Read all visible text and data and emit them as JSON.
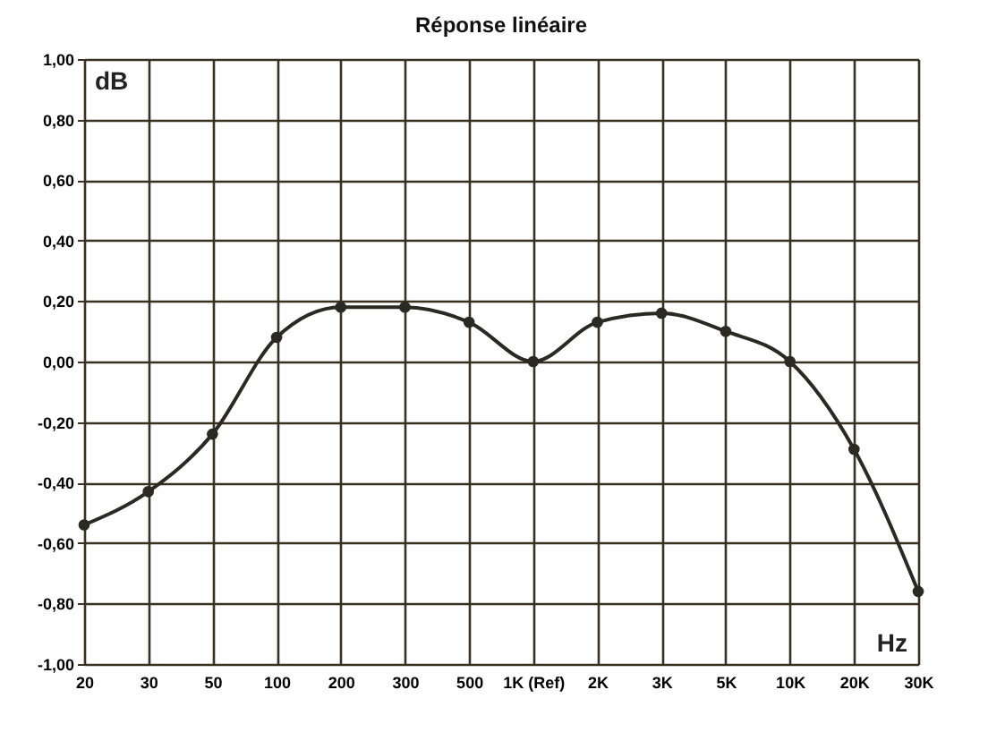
{
  "chart_data": {
    "type": "line",
    "title": "Réponse linéaire",
    "xlabel": "Hz",
    "ylabel": "dB",
    "categories": [
      "20",
      "30",
      "50",
      "100",
      "200",
      "300",
      "500",
      "1K (Ref)",
      "2K",
      "3K",
      "5K",
      "10K",
      "20K",
      "30K"
    ],
    "series": [
      {
        "color": "#2a2a22",
        "values": [
          -0.54,
          -0.43,
          -0.24,
          0.08,
          0.18,
          0.18,
          0.13,
          0.0,
          0.13,
          0.16,
          0.1,
          0.0,
          -0.29,
          -0.76
        ]
      }
    ],
    "ylim": [
      -1,
      1
    ],
    "yticks": [
      {
        "value": -1,
        "label": "-1,00"
      },
      {
        "value": -0.8,
        "label": "-0,80"
      },
      {
        "value": -0.6,
        "label": "-0,60"
      },
      {
        "value": -0.4,
        "label": "-0,40"
      },
      {
        "value": -0.2,
        "label": "-0,20"
      },
      {
        "value": 0,
        "label": "0,00"
      },
      {
        "value": 0.2,
        "label": "0,20"
      },
      {
        "value": 0.4,
        "label": "0,40"
      },
      {
        "value": 0.6,
        "label": "0,60"
      },
      {
        "value": 0.8,
        "label": "0,80"
      },
      {
        "value": 1,
        "label": "1,00"
      }
    ],
    "grid": true,
    "marker": "circle",
    "line_style": "solid"
  }
}
